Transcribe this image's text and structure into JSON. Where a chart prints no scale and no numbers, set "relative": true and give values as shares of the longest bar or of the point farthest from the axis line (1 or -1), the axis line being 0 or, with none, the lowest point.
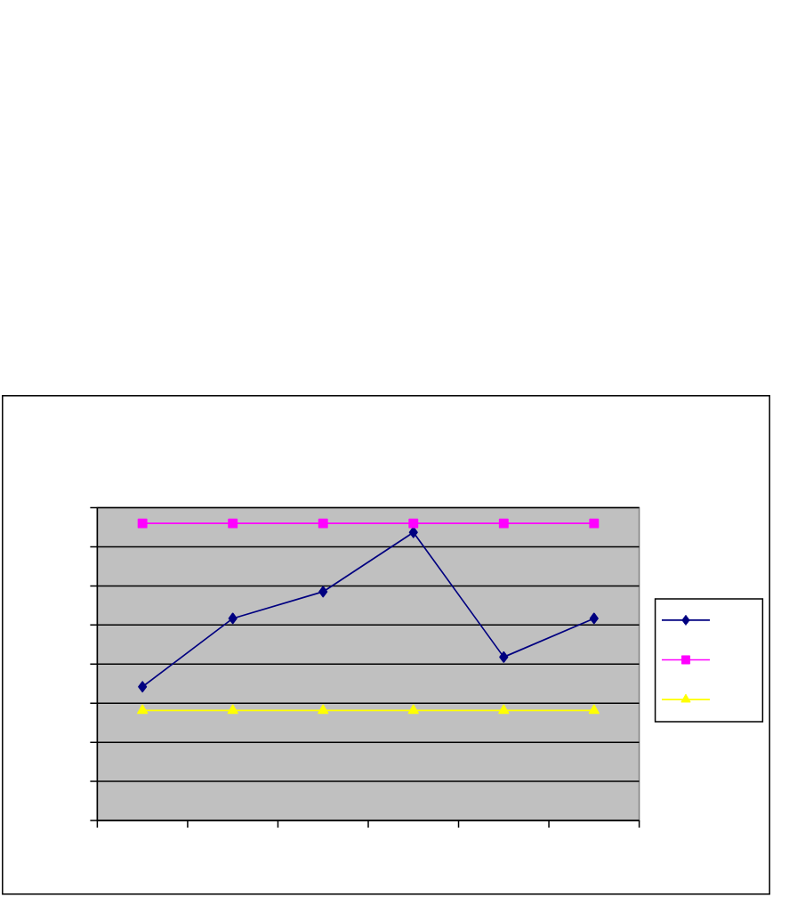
{
  "chart_data": {
    "type": "line",
    "relative": true,
    "categories": [
      null,
      null,
      null,
      null,
      null,
      null
    ],
    "series": [
      {
        "color": "#000080",
        "marker": "diamond",
        "values": [
          0.45,
          0.68,
          0.77,
          0.97,
          0.55,
          0.68
        ]
      },
      {
        "color": "#ff00ff",
        "marker": "square",
        "values": [
          1,
          1,
          1,
          1,
          1,
          1
        ]
      },
      {
        "color": "#ffff00",
        "marker": "triangle",
        "values": [
          0.37,
          0.37,
          0.37,
          0.37,
          0.37,
          0.37
        ]
      }
    ],
    "grid": "y",
    "line_style": "solid"
  }
}
